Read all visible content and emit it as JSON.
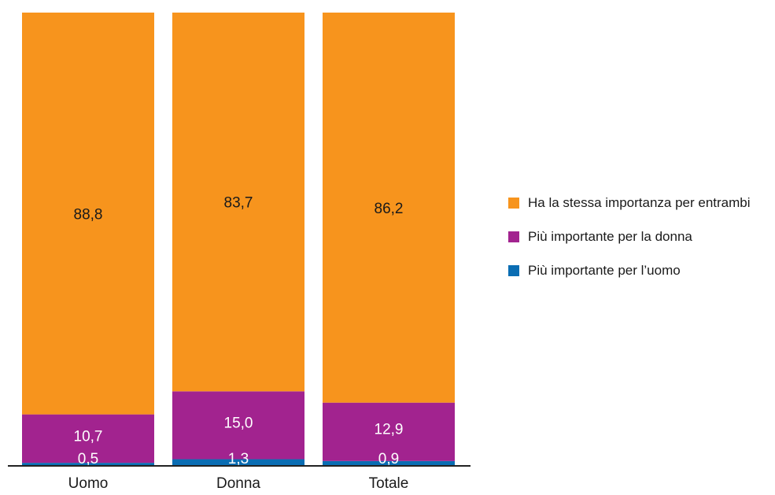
{
  "chart_data": {
    "type": "bar",
    "stacked": true,
    "categories": [
      "Uomo",
      "Donna",
      "Totale"
    ],
    "series": [
      {
        "name": "Più importante per l’uomo",
        "values": [
          0.5,
          1.3,
          0.9
        ],
        "color": "#0a6db3",
        "labels": [
          "0,5",
          "1,3",
          "0,9"
        ]
      },
      {
        "name": "Più importante per la donna",
        "values": [
          10.7,
          15.0,
          12.9
        ],
        "color": "#a2238f",
        "labels": [
          "10,7",
          "15,0",
          "12,9"
        ]
      },
      {
        "name": "Ha la stessa importanza per entrambi",
        "values": [
          88.8,
          83.7,
          86.2
        ],
        "color": "#f7941d",
        "labels": [
          "88,8",
          "83,7",
          "86,2"
        ]
      }
    ],
    "ylim": [
      0,
      100
    ],
    "grid": false,
    "legend_position": "right"
  }
}
